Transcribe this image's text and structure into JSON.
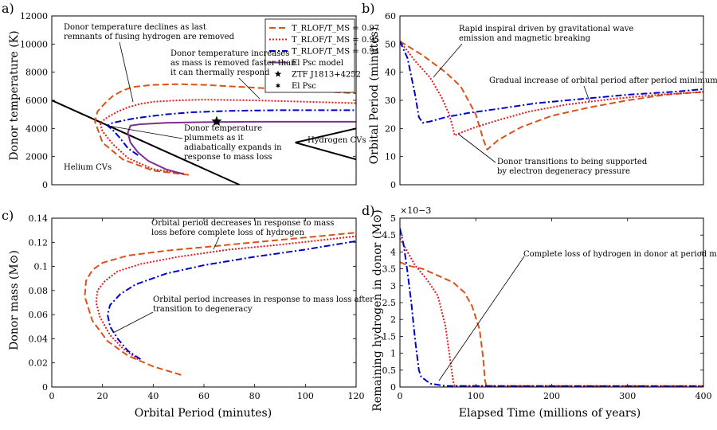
{
  "chart_data": [
    {
      "type": "line",
      "panel_label": "a)",
      "xlabel": "",
      "ylabel": "Donor temperature (K)",
      "xlim": [
        0,
        120
      ],
      "ylim": [
        0,
        12000
      ],
      "yticks": [
        0,
        2000,
        4000,
        6000,
        8000,
        10000,
        12000
      ],
      "ytick_labels": [
        "0",
        "2000",
        "4000",
        "6000",
        "8000",
        "10000",
        "12000"
      ],
      "legend": {
        "placement": "top-right",
        "entries": [
          {
            "label": "T_RLOF/T_MS = 0.97",
            "color": "#d95319",
            "style": "dashed"
          },
          {
            "label": "T_RLOF/T_MS = 0.95",
            "color": "#e41a1c",
            "style": "dotted"
          },
          {
            "label": "T_RLOF/T_MS = 0.94",
            "color": "#0000cc",
            "style": "dashdot"
          },
          {
            "label": "El Psc model",
            "color": "#7e2f8e",
            "style": "solid"
          },
          {
            "label": "ZTF J1813+4252",
            "marker": "star"
          },
          {
            "label": "El Psc",
            "marker": "hexagram"
          }
        ]
      },
      "series": [
        {
          "name": "T_RLOF/T_MS = 0.97",
          "x": [
            54,
            40,
            28,
            20,
            17,
            18,
            21,
            24,
            28,
            32,
            40,
            50,
            60,
            80,
            100,
            120
          ],
          "y": [
            700,
            1000,
            1800,
            3000,
            4500,
            5200,
            5800,
            6300,
            6700,
            6950,
            7100,
            7150,
            7100,
            6900,
            6700,
            6500
          ]
        },
        {
          "name": "T_RLOF/T_MS = 0.95",
          "x": [
            52,
            40,
            30,
            24,
            20,
            19,
            22,
            26,
            30,
            35,
            40,
            50,
            60,
            80,
            100,
            120
          ],
          "y": [
            800,
            1100,
            1900,
            2900,
            3800,
            4400,
            4800,
            5200,
            5500,
            5750,
            5900,
            6000,
            6050,
            6000,
            5900,
            5800
          ]
        },
        {
          "name": "T_RLOF/T_MS = 0.94",
          "x": [
            34,
            30,
            27,
            24,
            22,
            24,
            28,
            32,
            38,
            45,
            55,
            70,
            90,
            120
          ],
          "y": [
            2100,
            2600,
            3300,
            3900,
            4200,
            4400,
            4550,
            4700,
            4850,
            5000,
            5150,
            5250,
            5300,
            5300
          ]
        },
        {
          "name": "El Psc model",
          "x": [
            52,
            45,
            38,
            34,
            31,
            30,
            31,
            35,
            45,
            60,
            80,
            100,
            120
          ],
          "y": [
            750,
            1100,
            1700,
            2300,
            3000,
            3700,
            4200,
            4300,
            4400,
            4450,
            4480,
            4480,
            4480
          ]
        }
      ],
      "black_lines": [
        {
          "x": [
            0,
            74
          ],
          "y": [
            6000,
            0
          ]
        },
        {
          "x": [
            96,
            120
          ],
          "y": [
            3000,
            1800
          ]
        },
        {
          "x": [
            96,
            120
          ],
          "y": [
            3000,
            4000
          ]
        }
      ],
      "markers": [
        {
          "name": "ZTF J1813+4252",
          "x": 65,
          "y": 4500,
          "marker": "star"
        },
        {
          "name": "El Psc",
          "x": 65,
          "y": 4500,
          "marker": "hexagram"
        }
      ],
      "annotations": [
        {
          "text_lines": [
            "Donor temperature declines as last",
            "remnants of fusing hydrogen are removed"
          ]
        },
        {
          "text_lines": [
            "Donor temperature increases",
            "as mass is removed faster than",
            "it can thermally respond"
          ]
        },
        {
          "text_lines": [
            "Donor temperature",
            "plummets as it",
            "adiabatically expands in",
            "response to mass loss"
          ]
        },
        {
          "text_lines": [
            "Hydrogen CVs"
          ]
        },
        {
          "text_lines": [
            "Helium CVs"
          ]
        }
      ]
    },
    {
      "type": "line",
      "panel_label": "b)",
      "xlabel": "",
      "ylabel": "Orbital Period (minutes)",
      "xlim": [
        0,
        400
      ],
      "ylim": [
        0,
        60
      ],
      "yticks": [
        0,
        10,
        20,
        30,
        40,
        50,
        60
      ],
      "ytick_labels": [
        "0",
        "10",
        "20",
        "30",
        "40",
        "50",
        "60"
      ],
      "series": [
        {
          "name": "T_RLOF/T_MS = 0.97",
          "x": [
            0,
            30,
            60,
            80,
            100,
            110,
            115,
            130,
            160,
            200,
            250,
            300,
            350,
            400
          ],
          "y": [
            51,
            46,
            40,
            35,
            25,
            16,
            12.5,
            16,
            20.5,
            24.5,
            27.5,
            30,
            32,
            33
          ]
        },
        {
          "name": "T_RLOF/T_MS = 0.95",
          "x": [
            0,
            20,
            40,
            55,
            65,
            70,
            72,
            80,
            100,
            130,
            170,
            220,
            280,
            340,
            400
          ],
          "y": [
            51,
            44,
            38,
            31,
            25,
            20,
            17.5,
            18.5,
            20.5,
            23,
            26,
            28.5,
            30.5,
            32,
            33
          ]
        },
        {
          "name": "T_RLOF/T_MS = 0.94",
          "x": [
            0,
            10,
            20,
            25,
            30,
            40,
            60,
            90,
            130,
            180,
            240,
            300,
            360,
            400
          ],
          "y": [
            51,
            45,
            32,
            24,
            22,
            22.5,
            24,
            25.5,
            27,
            29,
            30.5,
            32,
            33,
            34
          ]
        }
      ],
      "annotations": [
        {
          "text_lines": [
            "Rapid inspiral driven by gravitational wave",
            "emission and magnetic breaking"
          ]
        },
        {
          "text_lines": [
            "Gradual increase of orbital period after period minimum"
          ]
        },
        {
          "text_lines": [
            "Donor transitions to being supported",
            "by electron degeneracy pressure"
          ]
        }
      ]
    },
    {
      "type": "line",
      "panel_label": "c)",
      "xlabel": "Orbital Period (minutes)",
      "ylabel": "Donor mass (M⊙)",
      "xlim": [
        0,
        120
      ],
      "ylim": [
        0,
        0.14
      ],
      "xticks": [
        0,
        20,
        40,
        60,
        80,
        100,
        120
      ],
      "xtick_labels": [
        "0",
        "20",
        "40",
        "60",
        "80",
        "100",
        "120"
      ],
      "yticks": [
        0,
        0.02,
        0.04,
        0.06,
        0.08,
        0.1,
        0.12,
        0.14
      ],
      "ytick_labels": [
        "0",
        "0.02",
        "0.04",
        "0.06",
        "0.08",
        "0.1",
        "0.12",
        "0.14"
      ],
      "series": [
        {
          "name": "T_RLOF/T_MS = 0.97",
          "x": [
            51,
            40,
            30,
            22,
            16,
            13,
            13.5,
            16,
            20,
            30,
            45,
            60,
            80,
            100,
            120
          ],
          "y": [
            0.01,
            0.017,
            0.026,
            0.038,
            0.055,
            0.075,
            0.088,
            0.097,
            0.103,
            0.109,
            0.113,
            0.116,
            0.12,
            0.124,
            0.128
          ]
        },
        {
          "name": "T_RLOF/T_MS = 0.95",
          "x": [
            34,
            28,
            23,
            19,
            17.5,
            18,
            21,
            26,
            35,
            50,
            70,
            90,
            120
          ],
          "y": [
            0.023,
            0.032,
            0.043,
            0.058,
            0.07,
            0.08,
            0.088,
            0.096,
            0.102,
            0.108,
            0.114,
            0.118,
            0.125
          ]
        },
        {
          "name": "T_RLOF/T_MS = 0.94",
          "x": [
            35,
            30,
            26,
            23,
            22,
            23,
            27,
            33,
            45,
            60,
            80,
            100,
            120
          ],
          "y": [
            0.023,
            0.03,
            0.04,
            0.05,
            0.06,
            0.068,
            0.077,
            0.085,
            0.094,
            0.101,
            0.108,
            0.114,
            0.121
          ]
        }
      ],
      "annotations": [
        {
          "text_lines": [
            "Orbital period decreases in response to mass",
            "loss before complete loss of hydrogen"
          ]
        },
        {
          "text_lines": [
            "Orbital period increases in response to mass loss after",
            "transition to degeneracy"
          ]
        }
      ]
    },
    {
      "type": "line",
      "panel_label": "d)",
      "xlabel": "Elapsed Time (millions of years)",
      "ylabel": "Remaining hydrogen in donor (M⊙)",
      "y_multiplier": "×10−3",
      "xlim": [
        0,
        400
      ],
      "ylim": [
        0,
        0.005
      ],
      "xticks": [
        0,
        100,
        200,
        300,
        400
      ],
      "xtick_labels": [
        "0",
        "100",
        "200",
        "300",
        "400"
      ],
      "yticks": [
        0,
        0.0005,
        0.001,
        0.0015,
        0.002,
        0.0025,
        0.003,
        0.0035,
        0.004,
        0.0045,
        0.005
      ],
      "ytick_labels": [
        "0",
        "0.5",
        "1",
        "1.5",
        "2",
        "2.5",
        "3",
        "3.5",
        "4",
        "4.5",
        "5"
      ],
      "series": [
        {
          "name": "T_RLOF/T_MS = 0.97",
          "x": [
            0,
            10,
            30,
            50,
            70,
            85,
            95,
            105,
            110,
            112,
            114,
            400
          ],
          "y": [
            0.0037,
            0.0036,
            0.0035,
            0.0033,
            0.0031,
            0.0028,
            0.0024,
            0.0017,
            0.0008,
            0.0002,
            3e-05,
            3e-05
          ]
        },
        {
          "name": "T_RLOF/T_MS = 0.95",
          "x": [
            0,
            10,
            20,
            35,
            50,
            60,
            65,
            70,
            72,
            400
          ],
          "y": [
            0.0044,
            0.004,
            0.0036,
            0.0032,
            0.0027,
            0.0018,
            0.001,
            0.0002,
            3e-05,
            3e-05
          ]
        },
        {
          "name": "T_RLOF/T_MS = 0.94",
          "x": [
            0,
            5,
            10,
            15,
            20,
            25,
            28,
            40,
            60,
            400
          ],
          "y": [
            0.0047,
            0.0042,
            0.0034,
            0.0025,
            0.0014,
            0.0005,
            0.0003,
            0.0001,
            3e-05,
            2e-05
          ]
        }
      ],
      "annotations": [
        {
          "text_lines": [
            "Complete loss of hydrogen in donor at period minimum"
          ]
        }
      ]
    }
  ]
}
